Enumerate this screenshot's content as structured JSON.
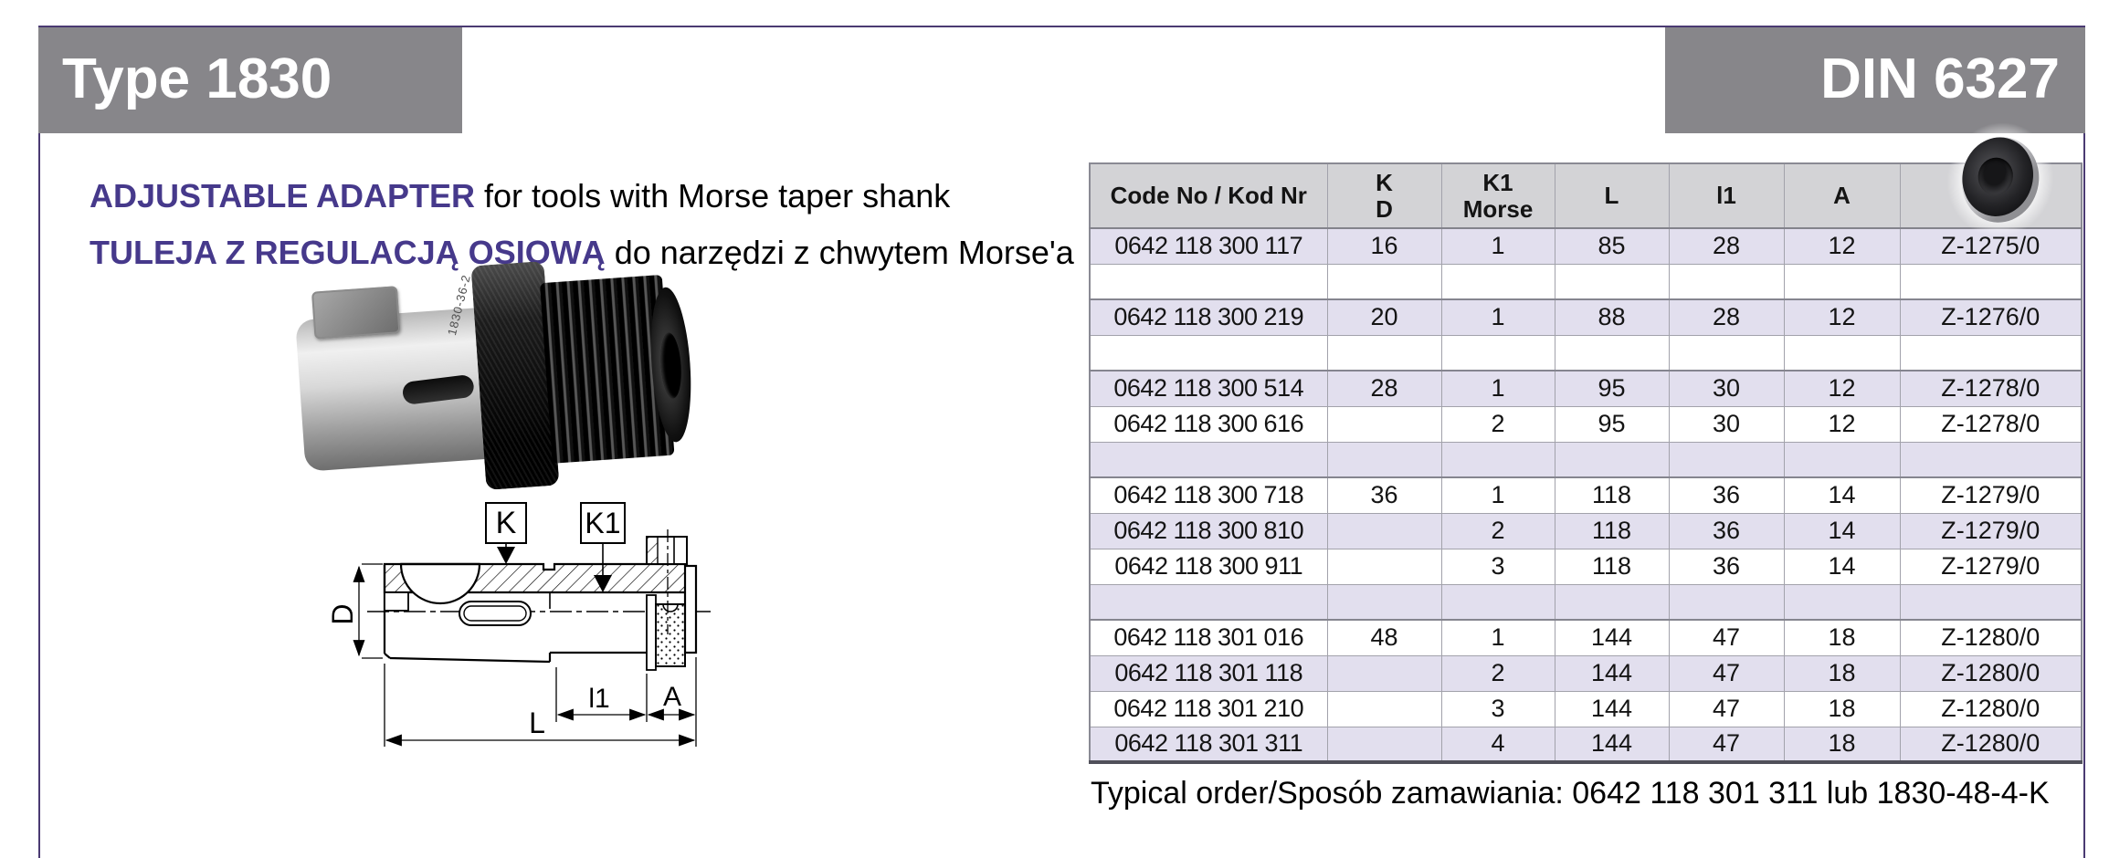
{
  "header": {
    "type_label": "Type 1830",
    "din_label": "DIN 6327"
  },
  "description": {
    "line1_bold": "ADJUSTABLE ADAPTER",
    "line1_rest": " for tools with Morse taper shank",
    "line2_bold": "TULEJA Z REGULACJĄ OSIOWĄ",
    "line2_rest": " do narzędzi z chwytem Morse'a"
  },
  "photo": {
    "engraving": "1830-36-2"
  },
  "drawing": {
    "labels": {
      "k": "K",
      "k1": "K1",
      "d": "D",
      "l1": "l1",
      "a": "A",
      "l": "L"
    }
  },
  "table": {
    "headers": {
      "code": "Code No / Kod Nr",
      "k_top": "K",
      "k_bottom": "D",
      "k1_top": "K1",
      "k1_bottom": "Morse",
      "l": "L",
      "l1": "l1",
      "a": "A"
    },
    "rows": [
      {
        "code": "0642 118 300 117",
        "k": "16",
        "k1": "1",
        "l": "85",
        "l1": "28",
        "a": "12",
        "z": "Z-1275/0"
      },
      {
        "code": "",
        "k": "",
        "k1": "",
        "l": "",
        "l1": "",
        "a": "",
        "z": ""
      },
      {
        "code": "0642 118 300 219",
        "k": "20",
        "k1": "1",
        "l": "88",
        "l1": "28",
        "a": "12",
        "z": "Z-1276/0"
      },
      {
        "code": "",
        "k": "",
        "k1": "",
        "l": "",
        "l1": "",
        "a": "",
        "z": ""
      },
      {
        "code": "0642 118 300 514",
        "k": "28",
        "k1": "1",
        "l": "95",
        "l1": "30",
        "a": "12",
        "z": "Z-1278/0"
      },
      {
        "code": "0642 118 300 616",
        "k": "",
        "k1": "2",
        "l": "95",
        "l1": "30",
        "a": "12",
        "z": "Z-1278/0"
      },
      {
        "code": "",
        "k": "",
        "k1": "",
        "l": "",
        "l1": "",
        "a": "",
        "z": ""
      },
      {
        "code": "0642 118 300 718",
        "k": "36",
        "k1": "1",
        "l": "118",
        "l1": "36",
        "a": "14",
        "z": "Z-1279/0"
      },
      {
        "code": "0642 118 300 810",
        "k": "",
        "k1": "2",
        "l": "118",
        "l1": "36",
        "a": "14",
        "z": "Z-1279/0"
      },
      {
        "code": "0642 118 300 911",
        "k": "",
        "k1": "3",
        "l": "118",
        "l1": "36",
        "a": "14",
        "z": "Z-1279/0"
      },
      {
        "code": "",
        "k": "",
        "k1": "",
        "l": "",
        "l1": "",
        "a": "",
        "z": ""
      },
      {
        "code": "0642 118 301 016",
        "k": "48",
        "k1": "1",
        "l": "144",
        "l1": "47",
        "a": "18",
        "z": "Z-1280/0"
      },
      {
        "code": "0642 118 301 118",
        "k": "",
        "k1": "2",
        "l": "144",
        "l1": "47",
        "a": "18",
        "z": "Z-1280/0"
      },
      {
        "code": "0642 118 301 210",
        "k": "",
        "k1": "3",
        "l": "144",
        "l1": "47",
        "a": "18",
        "z": "Z-1280/0"
      },
      {
        "code": "0642 118 301 311",
        "k": "",
        "k1": "4",
        "l": "144",
        "l1": "47",
        "a": "18",
        "z": "Z-1280/0"
      }
    ]
  },
  "footer": {
    "typical_order": "Typical order/Sposób zamawiania: 0642 118 301 311 lub 1830-48-4-K"
  },
  "colors": {
    "accent_purple": "#46398b",
    "frame_purple": "#4a3a72",
    "band_gray": "#87868a",
    "table_header_gray": "#d3d3d6",
    "row_lavender": "#e2dfee"
  }
}
